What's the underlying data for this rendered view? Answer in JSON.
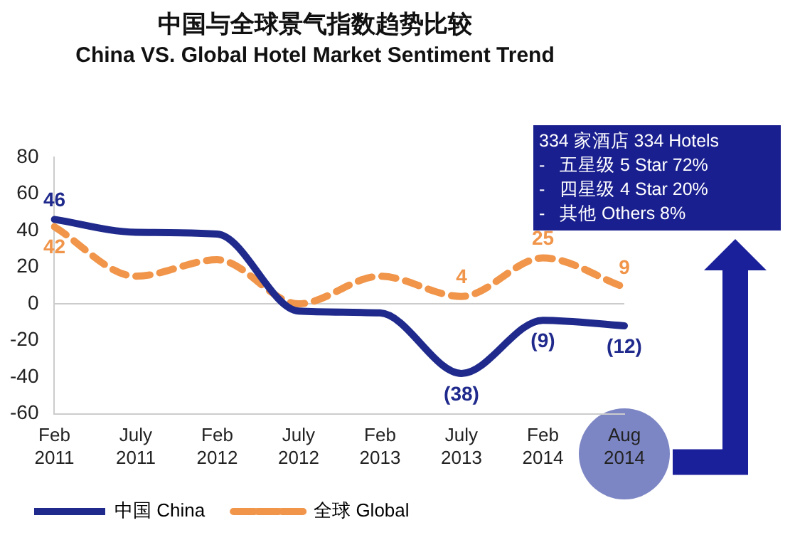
{
  "chart_data": {
    "type": "line",
    "title": "中国与全球景气指数趋势比较",
    "subtitle": "China VS. Global Hotel Market Sentiment Trend",
    "categories": [
      "Feb\n2011",
      "July\n2011",
      "Feb\n2012",
      "July\n2012",
      "Feb\n2013",
      "July\n2013",
      "Feb\n2014",
      "Aug\n2014"
    ],
    "series": [
      {
        "name": "中国 China",
        "color": "#1f2a8c",
        "values": [
          46,
          39,
          38,
          -4,
          -5,
          -38,
          -9,
          -12
        ],
        "value_labels": [
          "46",
          null,
          null,
          null,
          null,
          "(38)",
          "(9)",
          "(12)"
        ],
        "line_style": "solid"
      },
      {
        "name": "全球 Global",
        "color": "#f0954a",
        "values": [
          42,
          15,
          24,
          0,
          15,
          4,
          25,
          9
        ],
        "value_labels": [
          "42",
          null,
          null,
          null,
          null,
          "4",
          "25",
          "9"
        ],
        "line_style": "dashed"
      }
    ],
    "ref_lines": [
      {
        "axis": "y",
        "value": 0,
        "color": "#cccccc"
      }
    ],
    "ylim": [
      -60,
      80
    ],
    "yticks": [
      -60,
      -40,
      -20,
      0,
      20,
      40,
      60,
      80
    ],
    "grid": false,
    "legend": "bottom",
    "marker": "none",
    "annotations": [
      "334 家酒店 334 Hotels",
      "-   五星级 5 Star 72%",
      "-   四星级 4 Star 20%",
      "-   其他 Others 8%"
    ]
  }
}
